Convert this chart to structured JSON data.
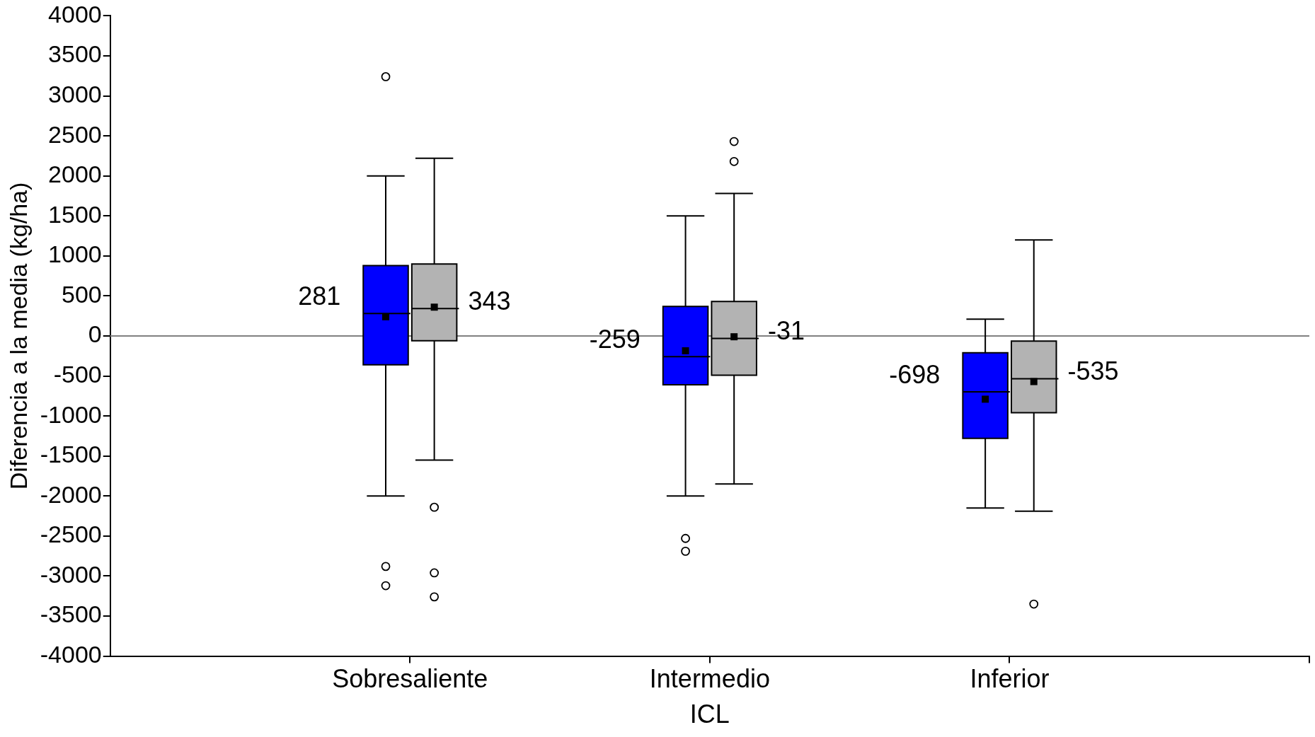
{
  "chart_data": {
    "type": "box",
    "xlabel": "ICL",
    "ylabel": "Diferencia a la media (kg/ha)",
    "categories": [
      "Sobresaliente",
      "Intermedio",
      "Inferior"
    ],
    "ylim": [
      -4000,
      4000
    ],
    "yticks": [
      -4000,
      -3500,
      -3000,
      -2500,
      -2000,
      -1500,
      -1000,
      -500,
      0,
      500,
      1000,
      1500,
      2000,
      2500,
      3000,
      3500,
      4000
    ],
    "grid": false,
    "legend": false,
    "ref_lines": [
      {
        "axis": "y",
        "value": 0,
        "color": "#808080"
      }
    ],
    "series": [
      {
        "color": "#0000ff",
        "value_labels": [
          "281",
          "-259",
          "-698"
        ],
        "boxes": [
          {
            "low": -2000,
            "q1": -360,
            "median": 281,
            "q3": 880,
            "high": 2000,
            "mean": 240,
            "outliers": [
              3240,
              -2880,
              -3120
            ]
          },
          {
            "low": -2000,
            "q1": -610,
            "median": -259,
            "q3": 370,
            "high": 1500,
            "mean": -185,
            "outliers": [
              -2530,
              -2690
            ]
          },
          {
            "low": -2150,
            "q1": -1280,
            "median": -698,
            "q3": -210,
            "high": 210,
            "mean": -790
          }
        ]
      },
      {
        "color": "#b3b3b3",
        "value_labels": [
          "343",
          "-31",
          "-535"
        ],
        "boxes": [
          {
            "low": -1550,
            "q1": -60,
            "median": 343,
            "q3": 900,
            "high": 2220,
            "mean": 360,
            "outliers": [
              -2140,
              -2960,
              -3260
            ]
          },
          {
            "low": -1850,
            "q1": -490,
            "median": -31,
            "q3": 430,
            "high": 1780,
            "mean": -10,
            "outliers": [
              2430,
              2180
            ]
          },
          {
            "low": -2190,
            "q1": -960,
            "median": -535,
            "q3": -65,
            "high": 1200,
            "mean": -570,
            "outliers": [
              -3350
            ]
          }
        ]
      }
    ]
  }
}
